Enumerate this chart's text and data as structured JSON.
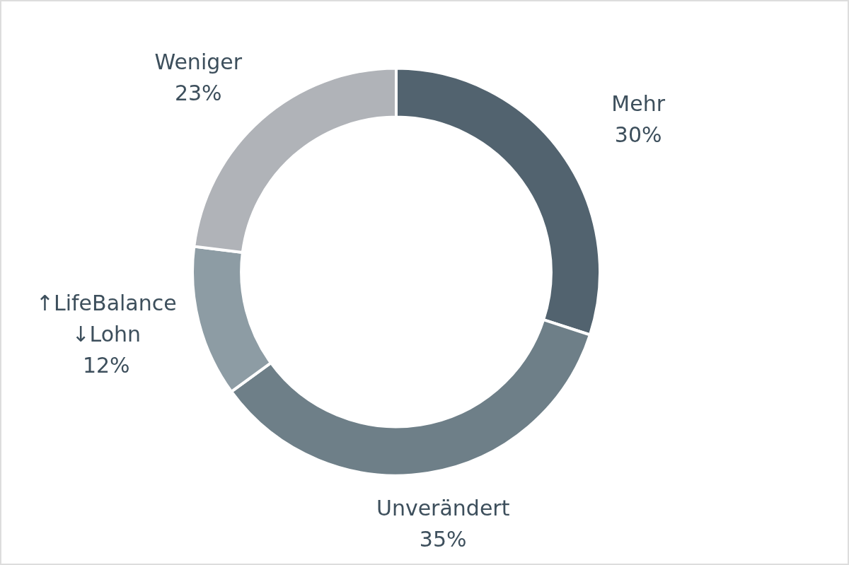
{
  "chart_data": {
    "type": "donut",
    "categories": [
      "Mehr",
      "Unverändert",
      "↑LifeBalance ↓Lohn",
      "Weniger"
    ],
    "values": [
      30,
      35,
      12,
      23
    ],
    "value_labels": [
      "30%",
      "35%",
      "12%",
      "23%"
    ],
    "colors": [
      "#52636f",
      "#6e7f88",
      "#8d9ca4",
      "#b0b3b8"
    ],
    "legend": false
  }
}
